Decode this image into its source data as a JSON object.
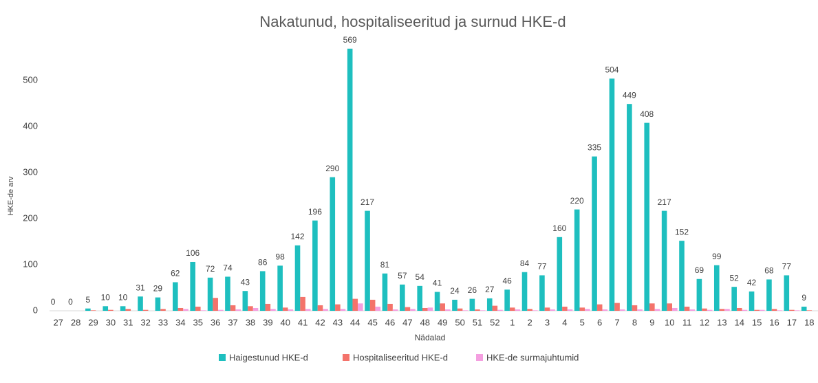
{
  "chart_data": {
    "type": "bar",
    "title": "Nakatunud, hospitaliseeritud ja surnud HKE-d",
    "x_label": "Nädalad",
    "y_label": "HKE-de arv",
    "categories": [
      "27",
      "28",
      "29",
      "30",
      "31",
      "32",
      "33",
      "34",
      "35",
      "36",
      "37",
      "38",
      "39",
      "40",
      "41",
      "42",
      "43",
      "44",
      "45",
      "46",
      "47",
      "48",
      "49",
      "50",
      "51",
      "52",
      "1",
      "2",
      "3",
      "4",
      "5",
      "6",
      "7",
      "8",
      "9",
      "10",
      "11",
      "12",
      "13",
      "14",
      "15",
      "16",
      "17",
      "18"
    ],
    "series": [
      {
        "name": "Haigestunud HKE-d",
        "color": "#1ebfbf",
        "values": [
          0,
          0,
          5,
          10,
          10,
          31,
          29,
          62,
          106,
          72,
          74,
          43,
          86,
          98,
          142,
          196,
          290,
          569,
          217,
          81,
          57,
          54,
          41,
          24,
          26,
          27,
          46,
          84,
          77,
          160,
          220,
          335,
          504,
          449,
          408,
          217,
          152,
          69,
          99,
          52,
          42,
          68,
          77,
          9
        ]
      },
      {
        "name": "Hospitaliseeritud HKE-d",
        "color": "#f4736b",
        "values": [
          0,
          0,
          1,
          2,
          4,
          2,
          4,
          6,
          9,
          28,
          12,
          10,
          15,
          7,
          30,
          12,
          14,
          26,
          24,
          15,
          8,
          6,
          16,
          5,
          3,
          11,
          7,
          4,
          7,
          9,
          7,
          14,
          17,
          12,
          16,
          16,
          9,
          5,
          4,
          6,
          2,
          4,
          2,
          1
        ]
      },
      {
        "name": "HKE-de surmajuhtumid",
        "color": "#f49fe0",
        "values": [
          0,
          0,
          0,
          0,
          0,
          0,
          0,
          4,
          1,
          2,
          3,
          6,
          4,
          3,
          4,
          4,
          4,
          16,
          9,
          3,
          4,
          7,
          3,
          1,
          1,
          2,
          3,
          1,
          3,
          3,
          4,
          3,
          3,
          3,
          4,
          6,
          3,
          2,
          4,
          2,
          2,
          1,
          1,
          0
        ]
      }
    ],
    "ylim": [
      0,
      600
    ],
    "yticks": [
      0,
      100,
      200,
      300,
      400,
      500
    ],
    "grid": false,
    "legend": "bottom"
  }
}
